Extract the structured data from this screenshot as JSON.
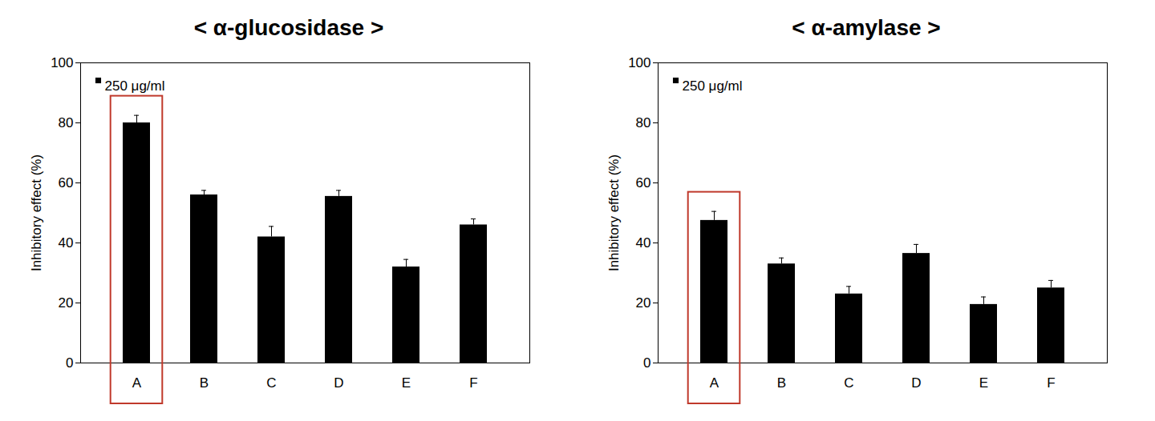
{
  "chart_data": [
    {
      "type": "bar",
      "title": "< α-glucosidase >",
      "categories": [
        "A",
        "B",
        "C",
        "D",
        "E",
        "F"
      ],
      "series": [
        {
          "name": "250 μg/ml",
          "color": "#000000",
          "values": [
            80,
            56,
            42,
            55.5,
            32,
            46
          ],
          "errors": [
            2.5,
            1.5,
            3.5,
            2,
            2.5,
            2
          ]
        }
      ],
      "ylabel": "Inhibitory effect (%)",
      "ylim": [
        0,
        100
      ],
      "yticks": [
        0,
        20,
        40,
        60,
        80,
        100
      ],
      "legend": "top-left"
    },
    {
      "type": "bar",
      "title": "< α-amylase >",
      "categories": [
        "A",
        "B",
        "C",
        "D",
        "E",
        "F"
      ],
      "series": [
        {
          "name": "250 μg/ml",
          "color": "#000000",
          "values": [
            47.5,
            33,
            23,
            36.5,
            19.5,
            25
          ],
          "errors": [
            3,
            2,
            2.5,
            3,
            2.5,
            2.5
          ]
        }
      ],
      "ylabel": "Inhibitory effect (%)",
      "ylim": [
        0,
        100
      ],
      "yticks": [
        0,
        20,
        40,
        60,
        80,
        100
      ],
      "legend": "top-left"
    }
  ]
}
